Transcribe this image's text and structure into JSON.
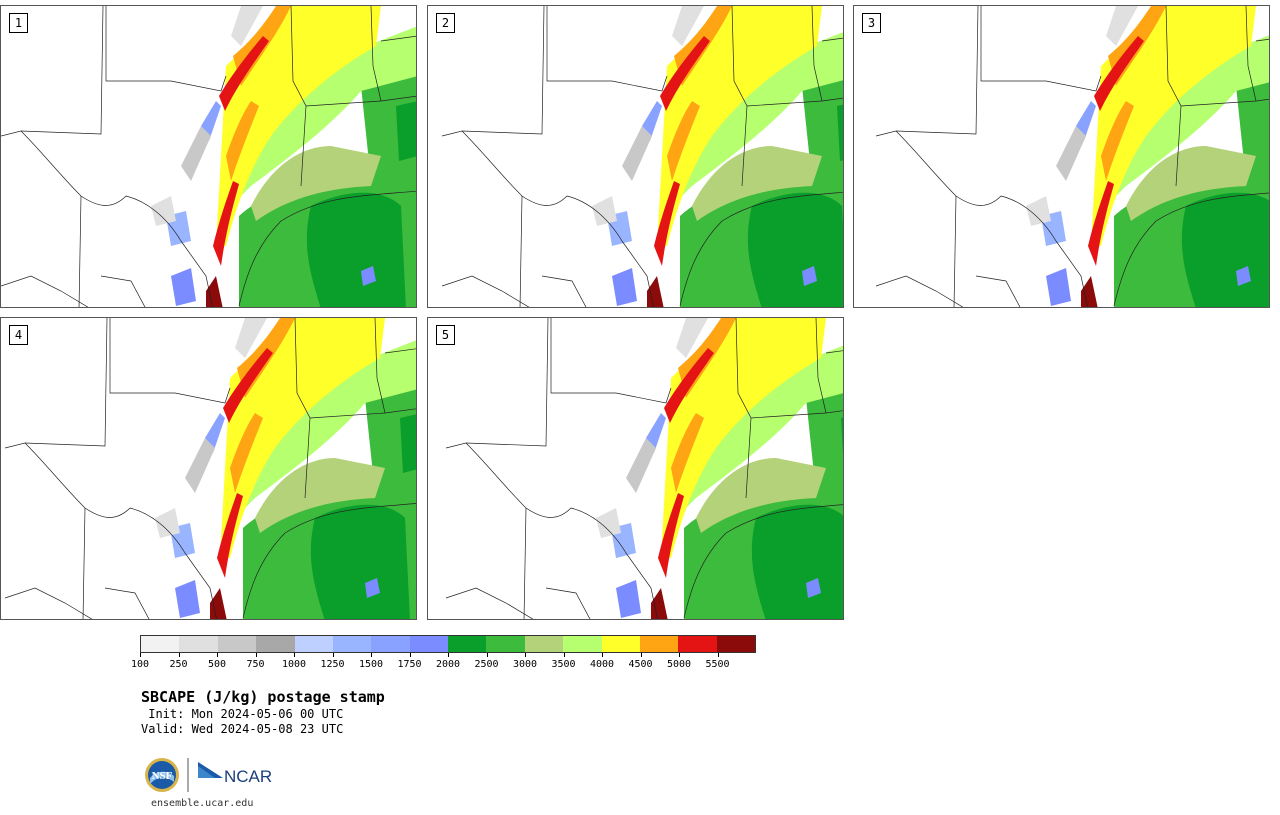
{
  "panels": [
    {
      "label": "1"
    },
    {
      "label": "2"
    },
    {
      "label": "3"
    },
    {
      "label": "4"
    },
    {
      "label": "5"
    }
  ],
  "colorbar": {
    "colors": [
      "#f2f2f2",
      "#e0e0e0",
      "#c8c8c8",
      "#a8a8a8",
      "#bdd0ff",
      "#9ab5ff",
      "#8aa2ff",
      "#7a8cff",
      "#0a9e2a",
      "#3dbb3d",
      "#b4d27a",
      "#b6ff6e",
      "#ffff2a",
      "#ffa514",
      "#e51414",
      "#8b0a0a"
    ],
    "ticks": [
      "100",
      "250",
      "500",
      "750",
      "1000",
      "1250",
      "1500",
      "1750",
      "2000",
      "2500",
      "3000",
      "3500",
      "4000",
      "4500",
      "5000",
      "5500"
    ]
  },
  "title": "SBCAPE (J/kg) postage stamp",
  "init": " Init: Mon 2024-05-06 00 UTC",
  "valid": "Valid: Wed 2024-05-08 23 UTC",
  "logos": {
    "nsf": "NSF",
    "ncar": "NCAR"
  },
  "url": "ensemble.ucar.edu"
}
